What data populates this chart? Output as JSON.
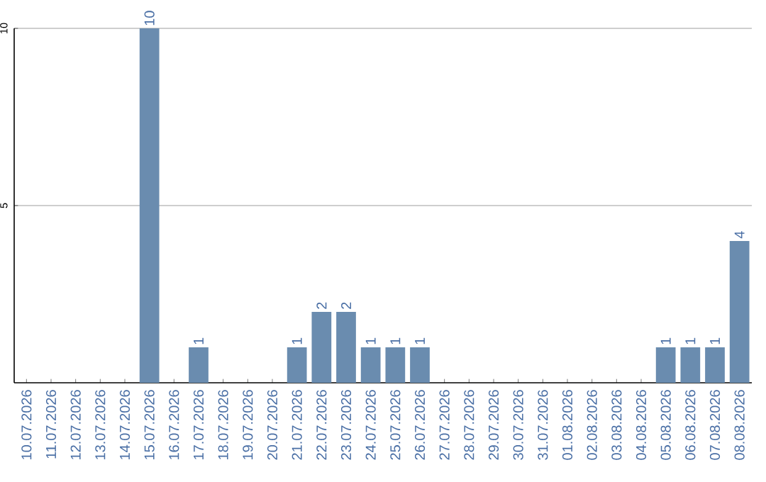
{
  "chart_data": {
    "type": "bar",
    "categories": [
      "10.07.2026",
      "11.07.2026",
      "12.07.2026",
      "13.07.2026",
      "14.07.2026",
      "15.07.2026",
      "16.07.2026",
      "17.07.2026",
      "18.07.2026",
      "19.07.2026",
      "20.07.2026",
      "21.07.2026",
      "22.07.2026",
      "23.07.2026",
      "24.07.2026",
      "25.07.2026",
      "26.07.2026",
      "27.07.2026",
      "28.07.2026",
      "29.07.2026",
      "30.07.2026",
      "31.07.2026",
      "01.08.2026",
      "02.08.2026",
      "03.08.2026",
      "04.08.2026",
      "05.08.2026",
      "06.08.2026",
      "07.08.2026",
      "08.08.2026"
    ],
    "values": [
      0,
      0,
      0,
      0,
      0,
      10,
      0,
      1,
      0,
      0,
      0,
      1,
      2,
      2,
      1,
      1,
      1,
      0,
      0,
      0,
      0,
      0,
      0,
      0,
      0,
      0,
      1,
      1,
      1,
      4
    ],
    "value_labels": [
      null,
      null,
      null,
      null,
      null,
      "10",
      null,
      "1",
      null,
      null,
      null,
      "1",
      "2",
      "2",
      "1",
      "1",
      "1",
      null,
      null,
      null,
      null,
      null,
      null,
      null,
      null,
      null,
      "1",
      "1",
      "1",
      "4"
    ],
    "color": "#6a8caf",
    "ylim": [
      0,
      10
    ],
    "yticks": [
      5,
      10
    ],
    "grid": "y"
  }
}
